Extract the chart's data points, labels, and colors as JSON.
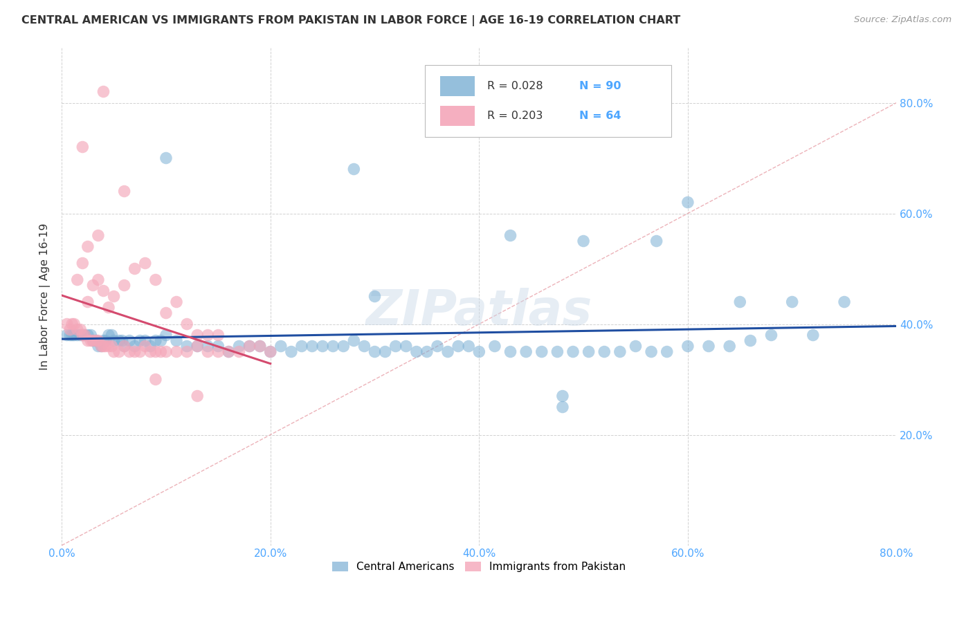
{
  "title": "CENTRAL AMERICAN VS IMMIGRANTS FROM PAKISTAN IN LABOR FORCE | AGE 16-19 CORRELATION CHART",
  "source": "Source: ZipAtlas.com",
  "ylabel": "In Labor Force | Age 16-19",
  "xlim": [
    0.0,
    0.8
  ],
  "ylim": [
    0.0,
    0.9
  ],
  "xticks": [
    0.0,
    0.2,
    0.4,
    0.6,
    0.8
  ],
  "yticks": [
    0.2,
    0.4,
    0.6,
    0.8
  ],
  "blue_color": "#7bafd4",
  "pink_color": "#f4a7b9",
  "blue_line_color": "#1f4ea1",
  "pink_line_color": "#d44a6e",
  "diag_color": "#d4a0a8",
  "tick_color": "#4da6ff",
  "watermark": "ZIPatlas",
  "legend_label1": "Central Americans",
  "legend_label2": "Immigrants from Pakistan",
  "blue_r": "0.028",
  "blue_n": "90",
  "pink_r": "0.203",
  "pink_n": "64",
  "blue_x": [
    0.005,
    0.008,
    0.01,
    0.012,
    0.015,
    0.018,
    0.02,
    0.022,
    0.025,
    0.028,
    0.03,
    0.033,
    0.035,
    0.038,
    0.04,
    0.042,
    0.045,
    0.048,
    0.05,
    0.055,
    0.058,
    0.06,
    0.065,
    0.07,
    0.075,
    0.08,
    0.085,
    0.09,
    0.095,
    0.1,
    0.11,
    0.12,
    0.13,
    0.14,
    0.15,
    0.16,
    0.17,
    0.18,
    0.19,
    0.2,
    0.21,
    0.22,
    0.23,
    0.24,
    0.25,
    0.26,
    0.27,
    0.28,
    0.29,
    0.3,
    0.31,
    0.32,
    0.33,
    0.34,
    0.35,
    0.36,
    0.37,
    0.38,
    0.39,
    0.4,
    0.415,
    0.43,
    0.445,
    0.46,
    0.475,
    0.49,
    0.505,
    0.52,
    0.535,
    0.55,
    0.565,
    0.58,
    0.6,
    0.62,
    0.64,
    0.66,
    0.68,
    0.7,
    0.72,
    0.75,
    0.28,
    0.6,
    0.1,
    0.48,
    0.3,
    0.5,
    0.43,
    0.57,
    0.48,
    0.65
  ],
  "blue_y": [
    0.38,
    0.38,
    0.38,
    0.38,
    0.38,
    0.38,
    0.38,
    0.38,
    0.38,
    0.38,
    0.37,
    0.37,
    0.36,
    0.36,
    0.37,
    0.37,
    0.38,
    0.38,
    0.37,
    0.37,
    0.37,
    0.36,
    0.37,
    0.36,
    0.37,
    0.37,
    0.36,
    0.37,
    0.37,
    0.38,
    0.37,
    0.36,
    0.36,
    0.36,
    0.36,
    0.35,
    0.36,
    0.36,
    0.36,
    0.35,
    0.36,
    0.35,
    0.36,
    0.36,
    0.36,
    0.36,
    0.36,
    0.37,
    0.36,
    0.35,
    0.35,
    0.36,
    0.36,
    0.35,
    0.35,
    0.36,
    0.35,
    0.36,
    0.36,
    0.35,
    0.36,
    0.35,
    0.35,
    0.35,
    0.35,
    0.35,
    0.35,
    0.35,
    0.35,
    0.36,
    0.35,
    0.35,
    0.36,
    0.36,
    0.36,
    0.37,
    0.38,
    0.44,
    0.38,
    0.44,
    0.68,
    0.62,
    0.7,
    0.25,
    0.45,
    0.55,
    0.56,
    0.55,
    0.27,
    0.44
  ],
  "pink_x": [
    0.005,
    0.008,
    0.01,
    0.012,
    0.015,
    0.018,
    0.02,
    0.022,
    0.025,
    0.028,
    0.03,
    0.033,
    0.035,
    0.038,
    0.04,
    0.042,
    0.045,
    0.048,
    0.05,
    0.055,
    0.06,
    0.065,
    0.07,
    0.075,
    0.08,
    0.085,
    0.09,
    0.095,
    0.1,
    0.11,
    0.12,
    0.13,
    0.14,
    0.15,
    0.16,
    0.17,
    0.18,
    0.19,
    0.2,
    0.025,
    0.03,
    0.035,
    0.04,
    0.045,
    0.05,
    0.06,
    0.07,
    0.08,
    0.09,
    0.1,
    0.11,
    0.12,
    0.13,
    0.14,
    0.15,
    0.025,
    0.02,
    0.015,
    0.035,
    0.06,
    0.09,
    0.13,
    0.04,
    0.02
  ],
  "pink_y": [
    0.4,
    0.39,
    0.4,
    0.4,
    0.39,
    0.39,
    0.38,
    0.38,
    0.37,
    0.37,
    0.37,
    0.37,
    0.37,
    0.36,
    0.36,
    0.36,
    0.36,
    0.36,
    0.35,
    0.35,
    0.36,
    0.35,
    0.35,
    0.35,
    0.36,
    0.35,
    0.35,
    0.35,
    0.35,
    0.35,
    0.35,
    0.36,
    0.35,
    0.35,
    0.35,
    0.35,
    0.36,
    0.36,
    0.35,
    0.44,
    0.47,
    0.48,
    0.46,
    0.43,
    0.45,
    0.47,
    0.5,
    0.51,
    0.48,
    0.42,
    0.44,
    0.4,
    0.38,
    0.38,
    0.38,
    0.54,
    0.51,
    0.48,
    0.56,
    0.64,
    0.3,
    0.27,
    0.82,
    0.72
  ]
}
